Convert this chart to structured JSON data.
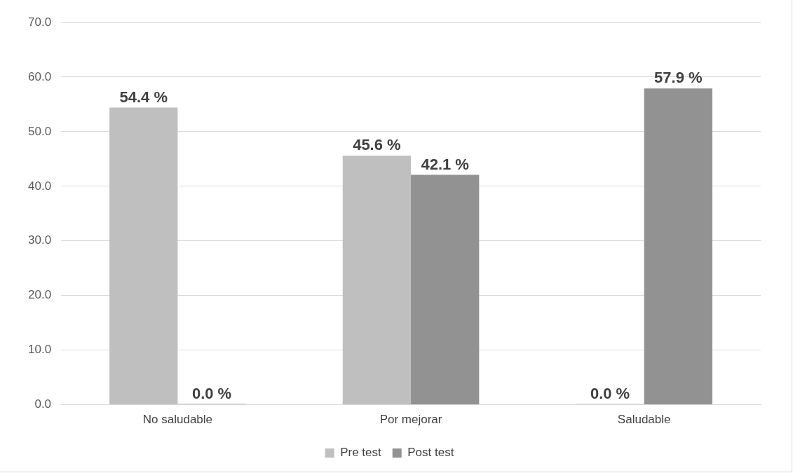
{
  "chart_data": {
    "type": "bar",
    "categories": [
      "No saludable",
      "Por mejorar",
      "Saludable"
    ],
    "series": [
      {
        "name": "Pre test",
        "color": "#bfbfbf",
        "values": [
          54.4,
          45.6,
          0.0
        ],
        "value_labels": [
          "54.4 %",
          "45.6 %",
          "0.0 %"
        ]
      },
      {
        "name": "Post test",
        "color": "#929292",
        "values": [
          0.0,
          42.1,
          57.9
        ],
        "value_labels": [
          "0.0 %",
          "42.1 %",
          "57.9 %"
        ]
      }
    ],
    "ylim": [
      0,
      70
    ],
    "yticks": [
      {
        "value": 0,
        "label": "0.0"
      },
      {
        "value": 10,
        "label": "10.0"
      },
      {
        "value": 20,
        "label": "20.0"
      },
      {
        "value": 30,
        "label": "30.0"
      },
      {
        "value": 40,
        "label": "40.0"
      },
      {
        "value": 50,
        "label": "50.0"
      },
      {
        "value": 60,
        "label": "60.0"
      },
      {
        "value": 70,
        "label": "70.0"
      }
    ],
    "grid": "y",
    "legend": "bottom"
  }
}
